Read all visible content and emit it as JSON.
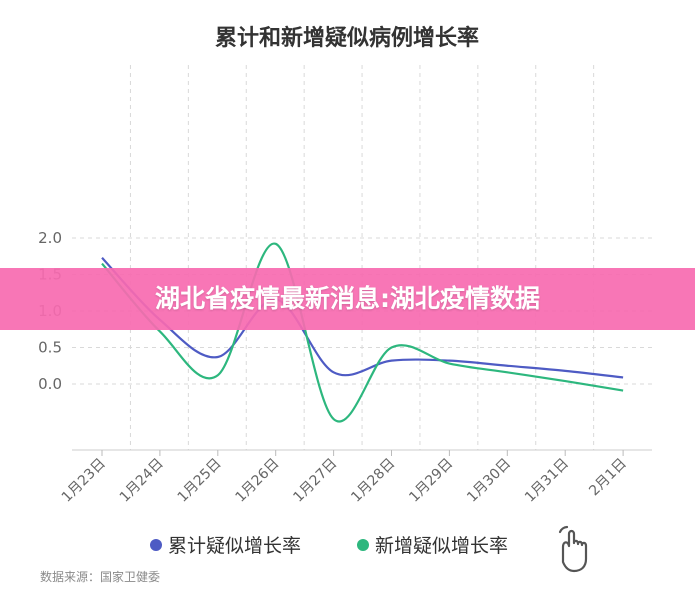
{
  "chart_data": {
    "type": "line",
    "title": "累计和新增疑似病例增长率",
    "categories": [
      "1月23日",
      "1月24日",
      "1月25日",
      "1月26日",
      "1月27日",
      "1月28日",
      "1月29日",
      "1月30日",
      "1月31日",
      "2月1日"
    ],
    "series": [
      {
        "name": "累计疑似增长率",
        "color": "#4e5bc4",
        "values": [
          1.73,
          0.88,
          0.37,
          1.16,
          0.16,
          0.32,
          0.32,
          0.25,
          0.18,
          0.09
        ]
      },
      {
        "name": "新增疑似增长率",
        "color": "#2db77e",
        "values": [
          1.65,
          0.72,
          0.12,
          1.92,
          -0.48,
          0.5,
          0.28,
          0.16,
          0.04,
          -0.09
        ]
      }
    ],
    "yticks": [
      "2.0",
      "1.5",
      "1.0",
      "0.5",
      "0.0"
    ],
    "ylim": [
      -0.45,
      2.2
    ],
    "grid": true,
    "legend_position": "bottom",
    "xlabel": "",
    "ylabel": ""
  },
  "source": "数据来源：国家卫健委",
  "banner": {
    "text": "湖北省疫情最新消息:湖北疫情数据",
    "color": "#f76ab0"
  },
  "legend_icon": "pointing-hand-icon"
}
